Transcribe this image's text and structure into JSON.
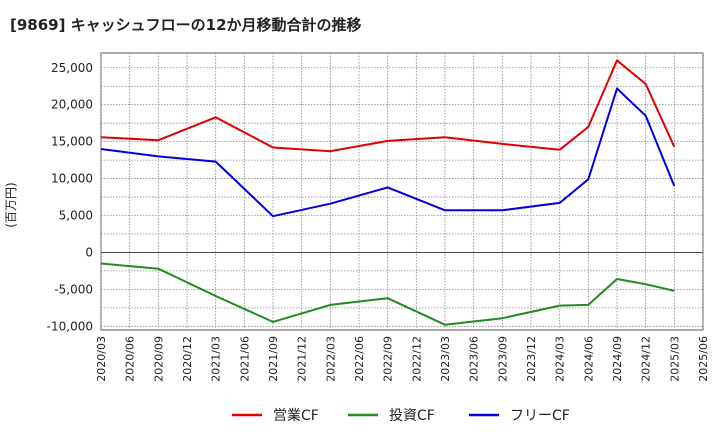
{
  "chart_data": {
    "type": "line",
    "title": "[9869]  キャッシュフローの12か月移動合計の推移",
    "ylabel": "(百万円)",
    "xlabel": "",
    "ylim": [
      -10500,
      27000
    ],
    "yticks": [
      -10000,
      -5000,
      0,
      5000,
      10000,
      15000,
      20000,
      25000
    ],
    "ytick_labels": [
      "-10,000",
      "-5,000",
      "0",
      "5,000",
      "10,000",
      "15,000",
      "20,000",
      "25,000"
    ],
    "x_ticks": [
      "2020/03",
      "2020/06",
      "2020/09",
      "2020/12",
      "2021/03",
      "2021/06",
      "2021/09",
      "2021/12",
      "2022/03",
      "2022/06",
      "2022/09",
      "2022/12",
      "2023/03",
      "2023/06",
      "2023/09",
      "2023/12",
      "2024/03",
      "2024/06",
      "2024/09",
      "2024/12",
      "2025/03",
      "2025/06"
    ],
    "grid": true,
    "legend": "bottom",
    "series": [
      {
        "name": "営業CF",
        "color": "#e00000",
        "points": [
          {
            "x": 0,
            "y": 15600
          },
          {
            "x": 2,
            "y": 15200
          },
          {
            "x": 4,
            "y": 18300
          },
          {
            "x": 6,
            "y": 14200
          },
          {
            "x": 8,
            "y": 13700
          },
          {
            "x": 10,
            "y": 15100
          },
          {
            "x": 12,
            "y": 15600
          },
          {
            "x": 14,
            "y": 14700
          },
          {
            "x": 16,
            "y": 13900
          },
          {
            "x": 17,
            "y": 17000
          },
          {
            "x": 18,
            "y": 26000
          },
          {
            "x": 19,
            "y": 22800
          },
          {
            "x": 20,
            "y": 14300
          }
        ]
      },
      {
        "name": "投資CF",
        "color": "#228b22",
        "points": [
          {
            "x": 0,
            "y": -1500
          },
          {
            "x": 2,
            "y": -2200
          },
          {
            "x": 4,
            "y": -5900
          },
          {
            "x": 6,
            "y": -9400
          },
          {
            "x": 8,
            "y": -7100
          },
          {
            "x": 10,
            "y": -6200
          },
          {
            "x": 12,
            "y": -9800
          },
          {
            "x": 14,
            "y": -8900
          },
          {
            "x": 16,
            "y": -7200
          },
          {
            "x": 17,
            "y": -7100
          },
          {
            "x": 18,
            "y": -3600
          },
          {
            "x": 19,
            "y": -4300
          },
          {
            "x": 20,
            "y": -5200
          }
        ]
      },
      {
        "name": "フリーCF",
        "color": "#0000e0",
        "points": [
          {
            "x": 0,
            "y": 14000
          },
          {
            "x": 2,
            "y": 13000
          },
          {
            "x": 4,
            "y": 12300
          },
          {
            "x": 6,
            "y": 4900
          },
          {
            "x": 8,
            "y": 6600
          },
          {
            "x": 10,
            "y": 8800
          },
          {
            "x": 12,
            "y": 5700
          },
          {
            "x": 14,
            "y": 5700
          },
          {
            "x": 16,
            "y": 6700
          },
          {
            "x": 17,
            "y": 9900
          },
          {
            "x": 18,
            "y": 22200
          },
          {
            "x": 19,
            "y": 18500
          },
          {
            "x": 20,
            "y": 9000
          }
        ]
      }
    ]
  }
}
